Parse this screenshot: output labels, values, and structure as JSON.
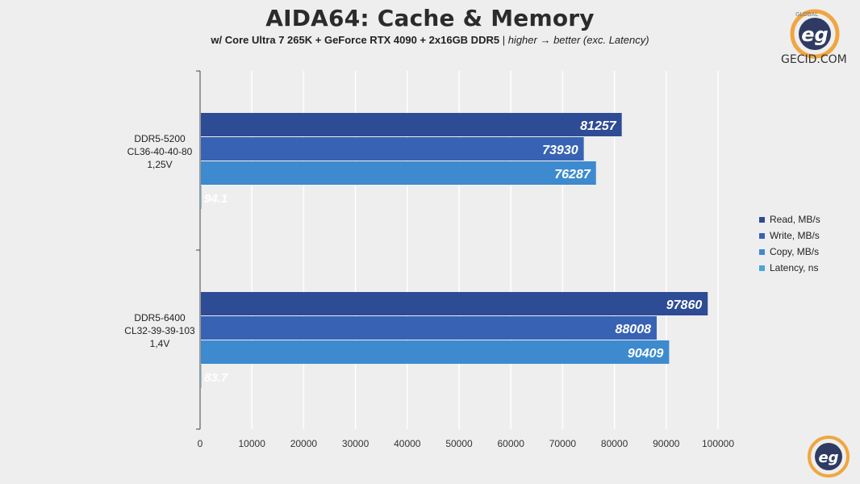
{
  "header": {
    "title": "AIDA64: Cache & Memory",
    "subtitle_bold": "w/ Core Ultra 7 265K + GeForce RTX 4090 + 2x16GB DDR5",
    "subtitle_sep": " | ",
    "subtitle_italic": "higher → better (exc. Latency)"
  },
  "branding": {
    "site": "GECID.COM",
    "logo_ring_text": "GLOBAL",
    "logo_script": "eg"
  },
  "colors": {
    "read": "#2e4b95",
    "write": "#3863b4",
    "copy": "#3d8ace",
    "latency": "#4aa6dc",
    "axis": "#444444",
    "grid": "#ffffff",
    "value_label": "#ffffff",
    "latency_label": "#ffffff"
  },
  "chart_data": {
    "type": "bar",
    "orientation": "horizontal",
    "categories": [
      [
        "DDR5-5200",
        "CL36-40-40-80",
        "1,25V"
      ],
      [
        "DDR5-6400",
        "CL32-39-39-103",
        "1,4V"
      ]
    ],
    "series": [
      {
        "name": "Read, MB/s",
        "color_key": "read",
        "values": [
          81257,
          97860
        ]
      },
      {
        "name": "Write, MB/s",
        "color_key": "write",
        "values": [
          73930,
          88008
        ]
      },
      {
        "name": "Copy, MB/s",
        "color_key": "copy",
        "values": [
          76287,
          90409
        ]
      },
      {
        "name": "Latency, ns",
        "color_key": "latency",
        "values": [
          94.1,
          83.7
        ]
      }
    ],
    "xlim": [
      0,
      100000
    ],
    "xticks": [
      0,
      10000,
      20000,
      30000,
      40000,
      50000,
      60000,
      70000,
      80000,
      90000,
      100000
    ],
    "grid": true,
    "legend_position": "right"
  }
}
